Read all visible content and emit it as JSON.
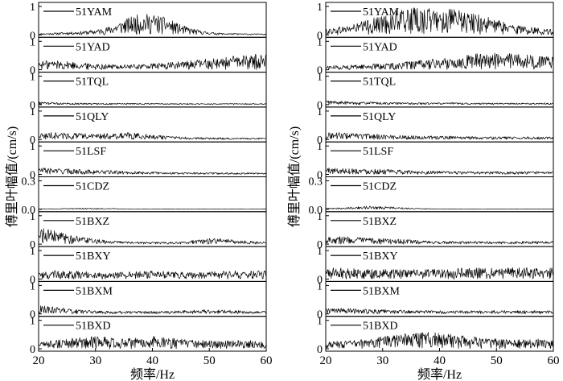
{
  "chart_data": [
    {
      "type": "line",
      "panel": "left",
      "xlabel": "频率/Hz",
      "ylabel": "傅里叶幅值/(cm/s)",
      "xlim": [
        20,
        60
      ],
      "x_ticks": [
        "20",
        "30",
        "40",
        "50",
        "60"
      ],
      "series": [
        {
          "name": "51YAM",
          "ylim": [
            0,
            1
          ],
          "y_ticks": [
            "1",
            "0"
          ],
          "profile": [
            0.05,
            0.07,
            0.1,
            0.12,
            0.18,
            0.3,
            0.55,
            0.72,
            0.75,
            0.6,
            0.35,
            0.2,
            0.1,
            0.06,
            0.05,
            0.04,
            0.04
          ]
        },
        {
          "name": "51YAD",
          "ylim": [
            0,
            1
          ],
          "y_ticks": [
            "1",
            "0"
          ],
          "profile": [
            0.3,
            0.35,
            0.3,
            0.25,
            0.22,
            0.2,
            0.18,
            0.2,
            0.22,
            0.25,
            0.3,
            0.35,
            0.4,
            0.45,
            0.5,
            0.55,
            0.55
          ]
        },
        {
          "name": "51TQL",
          "ylim": [
            0,
            1
          ],
          "y_ticks": [
            "1",
            "0"
          ],
          "profile": [
            0.1,
            0.08,
            0.07,
            0.06,
            0.05,
            0.05,
            0.05,
            0.05,
            0.05,
            0.04,
            0.04,
            0.04,
            0.04,
            0.04,
            0.04,
            0.04,
            0.04
          ]
        },
        {
          "name": "51QLY",
          "ylim": [
            0,
            1
          ],
          "y_ticks": [
            "1",
            "0"
          ],
          "profile": [
            0.22,
            0.25,
            0.24,
            0.22,
            0.2,
            0.22,
            0.25,
            0.22,
            0.18,
            0.12,
            0.1,
            0.08,
            0.07,
            0.07,
            0.06,
            0.06,
            0.06
          ]
        },
        {
          "name": "51LSF",
          "ylim": [
            0,
            1
          ],
          "y_ticks": [
            "1",
            "0"
          ],
          "profile": [
            0.25,
            0.22,
            0.2,
            0.18,
            0.15,
            0.14,
            0.12,
            0.1,
            0.09,
            0.08,
            0.07,
            0.07,
            0.07,
            0.06,
            0.06,
            0.06,
            0.06
          ]
        },
        {
          "name": "51CDZ",
          "ylim": [
            0,
            0.3
          ],
          "y_ticks": [
            "0.3",
            "0.0"
          ],
          "profile": [
            0.02,
            0.02,
            0.03,
            0.04,
            0.04,
            0.03,
            0.02,
            0.01,
            0.01,
            0.01,
            0.01,
            0.01,
            0.01,
            0.01,
            0.01,
            0.01,
            0.01
          ]
        },
        {
          "name": "51BXZ",
          "ylim": [
            0,
            1
          ],
          "y_ticks": [
            "1",
            "0"
          ],
          "profile": [
            0.6,
            0.5,
            0.35,
            0.25,
            0.18,
            0.12,
            0.1,
            0.08,
            0.08,
            0.08,
            0.08,
            0.15,
            0.2,
            0.2,
            0.15,
            0.1,
            0.08
          ]
        },
        {
          "name": "51BXY",
          "ylim": [
            0,
            1
          ],
          "y_ticks": [
            "1",
            "0"
          ],
          "profile": [
            0.25,
            0.3,
            0.3,
            0.28,
            0.25,
            0.22,
            0.25,
            0.28,
            0.3,
            0.28,
            0.25,
            0.22,
            0.25,
            0.28,
            0.3,
            0.3,
            0.3
          ]
        },
        {
          "name": "51BXM",
          "ylim": [
            0,
            1
          ],
          "y_ticks": [
            "1",
            "0"
          ],
          "profile": [
            0.3,
            0.25,
            0.2,
            0.15,
            0.12,
            0.1,
            0.1,
            0.1,
            0.1,
            0.1,
            0.12,
            0.14,
            0.15,
            0.14,
            0.12,
            0.1,
            0.1
          ]
        },
        {
          "name": "51BXD",
          "ylim": [
            0,
            1
          ],
          "y_ticks": [
            "1",
            "0"
          ],
          "profile": [
            0.25,
            0.3,
            0.35,
            0.4,
            0.45,
            0.4,
            0.35,
            0.4,
            0.45,
            0.4,
            0.35,
            0.3,
            0.3,
            0.3,
            0.3,
            0.3,
            0.3
          ]
        }
      ]
    },
    {
      "type": "line",
      "panel": "right",
      "xlabel": "频率/Hz",
      "ylabel": "傅里叶幅值/(cm/s)",
      "xlim": [
        20,
        60
      ],
      "x_ticks": [
        "20",
        "30",
        "40",
        "50",
        "60"
      ],
      "series": [
        {
          "name": "51YAM",
          "ylim": [
            0,
            1
          ],
          "y_ticks": [
            "1",
            "0"
          ],
          "profile": [
            0.2,
            0.3,
            0.4,
            0.55,
            0.7,
            0.85,
            0.95,
            0.95,
            0.95,
            0.9,
            0.8,
            0.7,
            0.55,
            0.4,
            0.3,
            0.25,
            0.2
          ]
        },
        {
          "name": "51YAD",
          "ylim": [
            0,
            1
          ],
          "y_ticks": [
            "1",
            "0"
          ],
          "profile": [
            0.15,
            0.15,
            0.18,
            0.2,
            0.22,
            0.25,
            0.3,
            0.35,
            0.4,
            0.45,
            0.55,
            0.6,
            0.6,
            0.6,
            0.55,
            0.5,
            0.45
          ]
        },
        {
          "name": "51TQL",
          "ylim": [
            0,
            1
          ],
          "y_ticks": [
            "1",
            "0"
          ],
          "profile": [
            0.15,
            0.12,
            0.1,
            0.1,
            0.08,
            0.08,
            0.07,
            0.07,
            0.07,
            0.07,
            0.07,
            0.06,
            0.06,
            0.06,
            0.06,
            0.06,
            0.06
          ]
        },
        {
          "name": "51QLY",
          "ylim": [
            0,
            1
          ],
          "y_ticks": [
            "1",
            "0"
          ],
          "profile": [
            0.25,
            0.25,
            0.22,
            0.2,
            0.18,
            0.15,
            0.14,
            0.13,
            0.12,
            0.12,
            0.11,
            0.1,
            0.1,
            0.1,
            0.1,
            0.1,
            0.1
          ]
        },
        {
          "name": "51LSF",
          "ylim": [
            0,
            1
          ],
          "y_ticks": [
            "1",
            "0"
          ],
          "profile": [
            0.25,
            0.22,
            0.22,
            0.2,
            0.18,
            0.16,
            0.14,
            0.12,
            0.12,
            0.11,
            0.1,
            0.1,
            0.1,
            0.1,
            0.1,
            0.1,
            0.1
          ]
        },
        {
          "name": "51CDZ",
          "ylim": [
            0,
            0.3
          ],
          "y_ticks": [
            "0.3",
            "0.0"
          ],
          "profile": [
            0.03,
            0.06,
            0.09,
            0.11,
            0.1,
            0.08,
            0.05,
            0.03,
            0.02,
            0.02,
            0.01,
            0.01,
            0.01,
            0.01,
            0.01,
            0.01,
            0.01
          ]
        },
        {
          "name": "51BXZ",
          "ylim": [
            0,
            1
          ],
          "y_ticks": [
            "1",
            "0"
          ],
          "profile": [
            0.3,
            0.28,
            0.25,
            0.22,
            0.2,
            0.18,
            0.15,
            0.12,
            0.1,
            0.1,
            0.1,
            0.1,
            0.1,
            0.1,
            0.1,
            0.1,
            0.1
          ]
        },
        {
          "name": "51BXY",
          "ylim": [
            0,
            1
          ],
          "y_ticks": [
            "1",
            "0"
          ],
          "profile": [
            0.4,
            0.4,
            0.38,
            0.35,
            0.35,
            0.35,
            0.35,
            0.35,
            0.35,
            0.38,
            0.4,
            0.4,
            0.4,
            0.4,
            0.4,
            0.4,
            0.4
          ]
        },
        {
          "name": "51BXM",
          "ylim": [
            0,
            1
          ],
          "y_ticks": [
            "1",
            "0"
          ],
          "profile": [
            0.2,
            0.2,
            0.18,
            0.16,
            0.15,
            0.14,
            0.13,
            0.12,
            0.12,
            0.12,
            0.12,
            0.12,
            0.12,
            0.12,
            0.12,
            0.12,
            0.12
          ]
        },
        {
          "name": "51BXD",
          "ylim": [
            0,
            1
          ],
          "y_ticks": [
            "1",
            "0"
          ],
          "profile": [
            0.25,
            0.28,
            0.3,
            0.35,
            0.45,
            0.5,
            0.55,
            0.6,
            0.55,
            0.5,
            0.45,
            0.4,
            0.35,
            0.35,
            0.35,
            0.35,
            0.35
          ]
        }
      ]
    }
  ]
}
